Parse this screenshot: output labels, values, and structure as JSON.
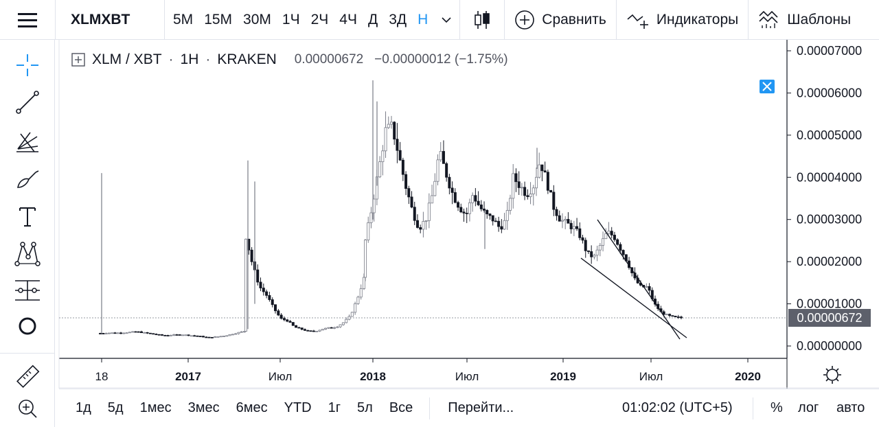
{
  "toolbar": {
    "symbol": "XLMXBT",
    "intervals": [
      "5М",
      "15М",
      "30М",
      "1Ч",
      "2Ч",
      "4Ч",
      "Д",
      "3Д",
      "Н"
    ],
    "active_interval": "Н",
    "compare_label": "Сравнить",
    "indicators_label": "Индикаторы",
    "templates_label": "Шаблоны"
  },
  "legend": {
    "symbol": "XLM / XBT",
    "interval": "1H",
    "exchange": "KRAKEN",
    "sep": "·",
    "last": "0.00000672",
    "change": "−0.00000012 (−1.75%)"
  },
  "price_axis": {
    "labels": [
      "0.00007000",
      "0.00006000",
      "0.00005000",
      "0.00004000",
      "0.00003000",
      "0.00002000",
      "0.00001000",
      "0.00000000"
    ],
    "last_price_badge": "0.00000672"
  },
  "time_axis": {
    "labels": [
      "18",
      "2017",
      "Июл",
      "2018",
      "Июл",
      "2019",
      "Июл",
      "2020"
    ]
  },
  "bottom": {
    "ranges": [
      "1д",
      "5д",
      "1мес",
      "3мес",
      "6мес",
      "YTD",
      "1г",
      "5л",
      "Все"
    ],
    "goto_label": "Перейти...",
    "clock": "01:02:02 (UTC+5)",
    "percent_label": "%",
    "log_label": "лог",
    "auto_label": "авто"
  },
  "colors": {
    "accent": "#2196f3",
    "candle": "#131722",
    "candle_up": "#787b86",
    "axis_line": "#131722"
  },
  "chart_data": {
    "type": "candlestick",
    "series_note": "",
    "ylim": [
      0,
      7e-05
    ],
    "x_ticks": [
      "18",
      "2017",
      "Июл",
      "2018",
      "Июл",
      "2019",
      "Июл",
      "2020"
    ],
    "close_path": [
      [
        3e-06,
        3.1e-06,
        3.1e-06,
        3.2e-06,
        3.4e-06,
        3.1e-06,
        2.8e-06,
        2.5e-06,
        2.6e-06,
        2.7e-06,
        2.5e-06,
        2.3e-06,
        2e-06,
        2.2e-06,
        2.5e-06,
        3e-06,
        3.5e-06
      ],
      [
        2.6e-05,
        1.9e-05,
        1.4e-05,
        1.2e-05,
        9e-06,
        6.5e-06,
        6e-06,
        4.5e-06,
        4e-06,
        3.5e-06,
        3.5e-06,
        4e-06,
        4.3e-06,
        4.5e-06,
        5.5e-06,
        7e-06,
        1.1e-05,
        1.6e-05
      ],
      [
        2.5e-05,
        3.3e-05,
        4.2e-05,
        5.1e-05,
        5.2e-05,
        4.5e-05,
        3.8e-05,
        3.2e-05,
        2.8e-05,
        3e-05,
        3.6e-05,
        4.6e-05,
        4.1e-05,
        3.6e-05,
        3.3e-05,
        3.1e-05,
        3.6e-05,
        3.3e-05,
        3.1e-05,
        3e-05,
        2.8e-05,
        3e-05,
        4e-05,
        3.8e-05,
        3.6e-05,
        3.8e-05,
        4.4e-05,
        3.9e-05,
        3.3e-05,
        3e-05,
        2.9e-05,
        2.8e-05,
        2.6e-05,
        2.2e-05,
        2.1e-05,
        2.4e-05,
        2.7e-05,
        2.6e-05,
        2.3e-05,
        2e-05,
        1.6e-05,
        1.4e-05,
        1.4e-05,
        1e-05,
        8e-06,
        7.2e-06,
        6.8e-06,
        6.7e-06
      ]
    ]
  }
}
